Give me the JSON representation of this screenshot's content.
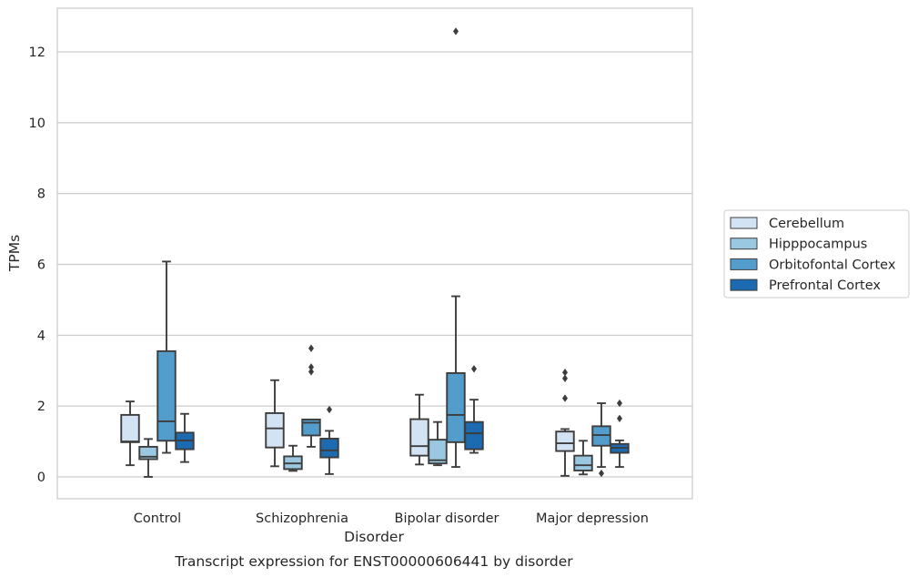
{
  "chart_data": {
    "type": "box",
    "xlabel": "Disorder",
    "ylabel": "TPMs",
    "caption": "Transcript expression for ENST00000606441 by disorder",
    "ylim": [
      -0.6,
      13.2
    ],
    "yticks": [
      0,
      2,
      4,
      6,
      8,
      10,
      12
    ],
    "grid": "horizontal",
    "legend_position": "right",
    "categories": [
      "Control",
      "Schizophrenia",
      "Bipolar disorder",
      "Major depression"
    ],
    "series": [
      {
        "name": "Cerebellum",
        "color": "#d2e3f3",
        "boxes": [
          {
            "whislo": 0.33,
            "q1": 0.98,
            "med": 1.0,
            "q3": 1.75,
            "whishi": 2.13,
            "fliers": []
          },
          {
            "whislo": 0.3,
            "q1": 0.83,
            "med": 1.37,
            "q3": 1.8,
            "whishi": 2.73,
            "fliers": []
          },
          {
            "whislo": 0.35,
            "q1": 0.6,
            "med": 0.87,
            "q3": 1.63,
            "whishi": 2.32,
            "fliers": []
          },
          {
            "whislo": 0.03,
            "q1": 0.73,
            "med": 0.95,
            "q3": 1.28,
            "whishi": 1.35,
            "fliers": [
              2.22,
              2.78,
              2.95
            ]
          }
        ]
      },
      {
        "name": "Hipppocampus",
        "color": "#9ac8e0",
        "boxes": [
          {
            "whislo": 0.0,
            "q1": 0.5,
            "med": 0.57,
            "q3": 0.85,
            "whishi": 1.07,
            "fliers": []
          },
          {
            "whislo": 0.17,
            "q1": 0.22,
            "med": 0.38,
            "q3": 0.58,
            "whishi": 0.88,
            "fliers": []
          },
          {
            "whislo": 0.33,
            "q1": 0.38,
            "med": 0.47,
            "q3": 1.05,
            "whishi": 1.55,
            "fliers": []
          },
          {
            "whislo": 0.07,
            "q1": 0.18,
            "med": 0.33,
            "q3": 0.6,
            "whishi": 1.02,
            "fliers": []
          }
        ]
      },
      {
        "name": "Orbitofontal Cortex",
        "color": "#529dcc",
        "boxes": [
          {
            "whislo": 0.68,
            "q1": 1.02,
            "med": 1.57,
            "q3": 3.55,
            "whishi": 6.08,
            "fliers": []
          },
          {
            "whislo": 0.85,
            "q1": 1.17,
            "med": 1.53,
            "q3": 1.62,
            "whishi": 1.62,
            "fliers": [
              2.97,
              3.1,
              3.63
            ]
          },
          {
            "whislo": 0.28,
            "q1": 0.98,
            "med": 1.75,
            "q3": 2.93,
            "whishi": 5.1,
            "fliers": [
              12.58
            ]
          },
          {
            "whislo": 0.28,
            "q1": 0.88,
            "med": 1.18,
            "q3": 1.43,
            "whishi": 2.08,
            "fliers": [
              0.1
            ]
          }
        ]
      },
      {
        "name": "Prefrontal Cortex",
        "color": "#1c6aaf",
        "boxes": [
          {
            "whislo": 0.42,
            "q1": 0.78,
            "med": 1.03,
            "q3": 1.25,
            "whishi": 1.78,
            "fliers": []
          },
          {
            "whislo": 0.08,
            "q1": 0.55,
            "med": 0.75,
            "q3": 1.08,
            "whishi": 1.3,
            "fliers": [
              1.9
            ]
          },
          {
            "whislo": 0.68,
            "q1": 0.78,
            "med": 1.23,
            "q3": 1.55,
            "whishi": 2.18,
            "fliers": [
              3.05
            ]
          },
          {
            "whislo": 0.28,
            "q1": 0.68,
            "med": 0.82,
            "q3": 0.93,
            "whishi": 1.03,
            "fliers": [
              1.65,
              2.08
            ]
          }
        ]
      }
    ]
  }
}
